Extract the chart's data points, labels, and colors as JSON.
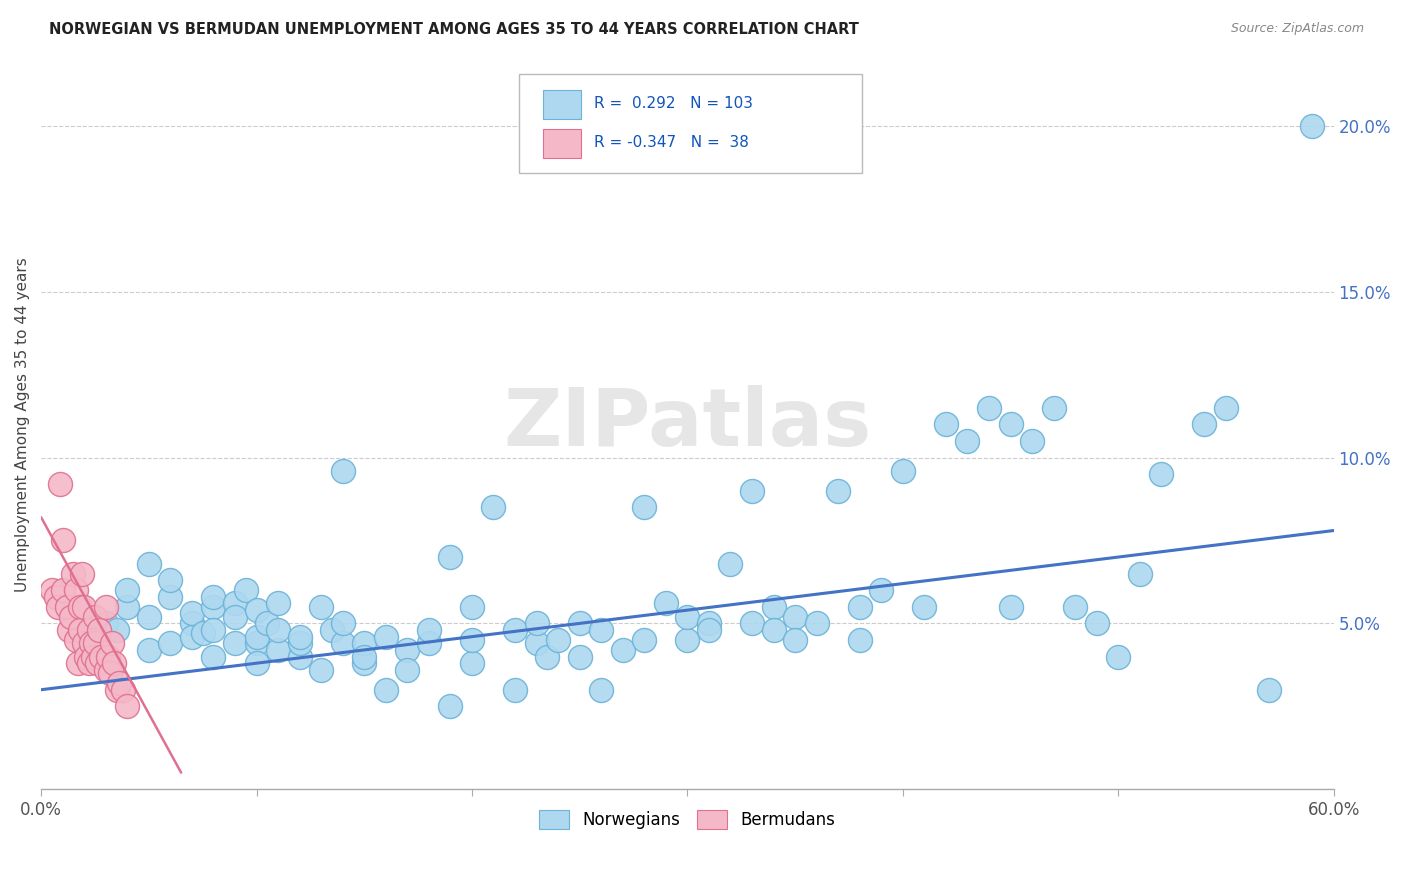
{
  "title": "NORWEGIAN VS BERMUDAN UNEMPLOYMENT AMONG AGES 35 TO 44 YEARS CORRELATION CHART",
  "source": "Source: ZipAtlas.com",
  "ylabel": "Unemployment Among Ages 35 to 44 years",
  "xlim": [
    0,
    0.6
  ],
  "ylim": [
    0,
    0.22
  ],
  "legend_series1": "Norwegians",
  "legend_series2": "Bermudans",
  "color_norwegian": "#ADD8F0",
  "color_norwegian_edge": "#6BB3D8",
  "color_norwegian_line": "#4472C4",
  "color_bermudan": "#F4B8C8",
  "color_bermudan_edge": "#E07090",
  "color_bermudan_line": "#E07090",
  "watermark": "ZIPatlas",
  "norwegian_x": [
    0.02,
    0.03,
    0.035,
    0.04,
    0.04,
    0.05,
    0.05,
    0.05,
    0.06,
    0.06,
    0.06,
    0.07,
    0.07,
    0.07,
    0.075,
    0.08,
    0.08,
    0.08,
    0.08,
    0.09,
    0.09,
    0.09,
    0.095,
    0.1,
    0.1,
    0.1,
    0.1,
    0.105,
    0.11,
    0.11,
    0.11,
    0.12,
    0.12,
    0.12,
    0.13,
    0.13,
    0.135,
    0.14,
    0.14,
    0.14,
    0.15,
    0.15,
    0.15,
    0.16,
    0.16,
    0.17,
    0.17,
    0.18,
    0.18,
    0.19,
    0.19,
    0.2,
    0.2,
    0.2,
    0.21,
    0.22,
    0.22,
    0.23,
    0.23,
    0.235,
    0.24,
    0.25,
    0.25,
    0.26,
    0.26,
    0.27,
    0.28,
    0.28,
    0.29,
    0.3,
    0.3,
    0.31,
    0.31,
    0.32,
    0.33,
    0.33,
    0.34,
    0.34,
    0.35,
    0.35,
    0.36,
    0.37,
    0.38,
    0.38,
    0.39,
    0.4,
    0.41,
    0.42,
    0.43,
    0.44,
    0.45,
    0.45,
    0.46,
    0.47,
    0.48,
    0.49,
    0.5,
    0.51,
    0.52,
    0.54,
    0.55,
    0.57,
    0.59
  ],
  "norwegian_y": [
    0.045,
    0.05,
    0.048,
    0.055,
    0.06,
    0.042,
    0.052,
    0.068,
    0.058,
    0.063,
    0.044,
    0.05,
    0.046,
    0.053,
    0.047,
    0.055,
    0.04,
    0.058,
    0.048,
    0.056,
    0.044,
    0.052,
    0.06,
    0.044,
    0.038,
    0.046,
    0.054,
    0.05,
    0.042,
    0.048,
    0.056,
    0.04,
    0.044,
    0.046,
    0.055,
    0.036,
    0.048,
    0.044,
    0.096,
    0.05,
    0.038,
    0.044,
    0.04,
    0.046,
    0.03,
    0.042,
    0.036,
    0.044,
    0.048,
    0.025,
    0.07,
    0.038,
    0.055,
    0.045,
    0.085,
    0.03,
    0.048,
    0.044,
    0.05,
    0.04,
    0.045,
    0.04,
    0.05,
    0.03,
    0.048,
    0.042,
    0.045,
    0.085,
    0.056,
    0.045,
    0.052,
    0.05,
    0.048,
    0.068,
    0.05,
    0.09,
    0.055,
    0.048,
    0.052,
    0.045,
    0.05,
    0.09,
    0.055,
    0.045,
    0.06,
    0.096,
    0.055,
    0.11,
    0.105,
    0.115,
    0.055,
    0.11,
    0.105,
    0.115,
    0.055,
    0.05,
    0.04,
    0.065,
    0.095,
    0.11,
    0.115,
    0.03,
    0.2
  ],
  "bermudan_x": [
    0.005,
    0.007,
    0.008,
    0.009,
    0.01,
    0.01,
    0.012,
    0.013,
    0.014,
    0.015,
    0.016,
    0.016,
    0.017,
    0.018,
    0.018,
    0.019,
    0.02,
    0.02,
    0.021,
    0.022,
    0.022,
    0.023,
    0.024,
    0.025,
    0.025,
    0.026,
    0.027,
    0.028,
    0.03,
    0.03,
    0.031,
    0.032,
    0.033,
    0.034,
    0.035,
    0.036,
    0.038,
    0.04
  ],
  "bermudan_y": [
    0.06,
    0.058,
    0.055,
    0.092,
    0.075,
    0.06,
    0.055,
    0.048,
    0.052,
    0.065,
    0.045,
    0.06,
    0.038,
    0.055,
    0.048,
    0.065,
    0.044,
    0.055,
    0.04,
    0.048,
    0.038,
    0.044,
    0.04,
    0.044,
    0.052,
    0.038,
    0.048,
    0.04,
    0.036,
    0.055,
    0.04,
    0.035,
    0.044,
    0.038,
    0.03,
    0.032,
    0.03,
    0.025
  ],
  "nor_trend_x0": 0.0,
  "nor_trend_y0": 0.03,
  "nor_trend_x1": 0.6,
  "nor_trend_y1": 0.078,
  "berm_trend_x0": 0.0,
  "berm_trend_y0": 0.082,
  "berm_trend_x1": 0.065,
  "berm_trend_y1": 0.005
}
